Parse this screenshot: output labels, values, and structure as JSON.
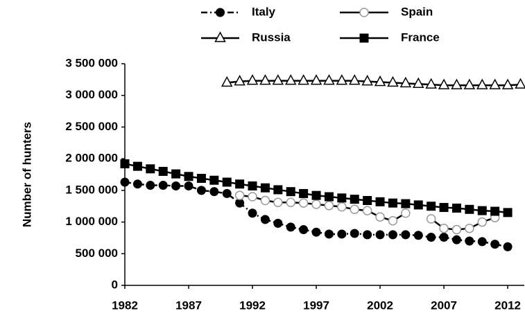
{
  "chart_data": {
    "type": "line",
    "y_label": "Number of hunters",
    "x": [
      1982,
      1983,
      1984,
      1985,
      1986,
      1987,
      1988,
      1989,
      1990,
      1991,
      1992,
      1993,
      1994,
      1995,
      1996,
      1997,
      1998,
      1999,
      2000,
      2001,
      2002,
      2003,
      2004,
      2005,
      2006,
      2007,
      2008,
      2009,
      2010,
      2011,
      2012,
      2013
    ],
    "xlim": [
      1982,
      2013.3
    ],
    "xticks": [
      1982,
      1987,
      1992,
      1997,
      2002,
      2007,
      2012
    ],
    "ylim": [
      0,
      3500000
    ],
    "yticks": [
      0,
      {
        "value": 500000,
        "label": "500 000"
      },
      {
        "value": 1000000,
        "label": "1 000 000"
      },
      {
        "value": 1500000,
        "label": "1 500 000"
      },
      {
        "value": 2000000,
        "label": "2 000 000"
      },
      {
        "value": 2500000,
        "label": "2 500 000"
      },
      {
        "value": 3000000,
        "label": "3 000 000"
      },
      {
        "value": 3500000,
        "label": "3 500 000"
      }
    ],
    "series": [
      {
        "name": "Italy",
        "color": "#000000",
        "line": "dashdot",
        "marker": "filled-circle",
        "values": [
          1630000,
          1600000,
          1580000,
          1580000,
          1570000,
          1570000,
          1500000,
          1480000,
          1450000,
          1300000,
          1140000,
          1040000,
          980000,
          920000,
          880000,
          840000,
          810000,
          810000,
          820000,
          800000,
          800000,
          800000,
          800000,
          790000,
          760000,
          760000,
          720000,
          700000,
          690000,
          650000,
          610000,
          null
        ]
      },
      {
        "name": "Spain",
        "color": "#999999",
        "line": "solid",
        "marker": "open-circle",
        "values": [
          null,
          null,
          null,
          null,
          null,
          null,
          null,
          null,
          null,
          1420000,
          1400000,
          1340000,
          1310000,
          1310000,
          1300000,
          1280000,
          1260000,
          1240000,
          1200000,
          1180000,
          1080000,
          1020000,
          1140000,
          null,
          1050000,
          900000,
          880000,
          900000,
          1000000,
          1070000,
          null,
          null
        ]
      },
      {
        "name": "Russia",
        "color": "#000000",
        "line": "solid",
        "marker": "open-triangle",
        "values": [
          null,
          null,
          null,
          null,
          null,
          null,
          null,
          null,
          3200000,
          3220000,
          3230000,
          3230000,
          3230000,
          3230000,
          3230000,
          3230000,
          3230000,
          3230000,
          3230000,
          3220000,
          3210000,
          3200000,
          3190000,
          3180000,
          3170000,
          3160000,
          3160000,
          3160000,
          3160000,
          3160000,
          3160000,
          3170000
        ]
      },
      {
        "name": "France",
        "color": "#000000",
        "line": "solid",
        "marker": "filled-square",
        "values": [
          1920000,
          1880000,
          1840000,
          1800000,
          1760000,
          1720000,
          1690000,
          1660000,
          1630000,
          1600000,
          1570000,
          1540000,
          1510000,
          1480000,
          1450000,
          1420000,
          1400000,
          1380000,
          1360000,
          1340000,
          1320000,
          1300000,
          1290000,
          1270000,
          1250000,
          1230000,
          1220000,
          1200000,
          1180000,
          1170000,
          1150000,
          null
        ]
      }
    ]
  }
}
